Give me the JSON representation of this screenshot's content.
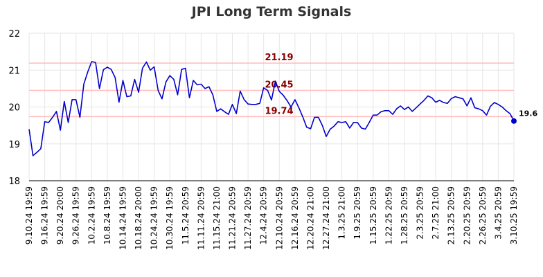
{
  "chart_data": {
    "type": "line",
    "title": "JPI Long Term Signals",
    "xlabel": "",
    "ylabel": "",
    "ylim": [
      18,
      22
    ],
    "yticks": [
      18,
      19,
      20,
      21,
      22
    ],
    "grid": true,
    "x_tick_labels": [
      "9.10.24 19:59",
      "9.16.24 19:59",
      "9.20.24 20:00",
      "9.26.24 19:59",
      "10.2.24 19:59",
      "10.8.24 19:59",
      "10.14.24 19:59",
      "10.18.24 20:00",
      "10.24.24 19:59",
      "10.30.24 19:59",
      "11.5.24 20:59",
      "11.11.24 20:59",
      "11.15.24 21:00",
      "11.21.24 20:59",
      "11.27.24 20:59",
      "12.4.24 20:59",
      "12.10.24 20:59",
      "12.16.24 20:59",
      "12.20.24 21:00",
      "12.27.24 21:00",
      "1.3.25 21:00",
      "1.9.25 20:59",
      "1.15.25 20:59",
      "1.22.25 20:59",
      "1.28.25 20:59",
      "2.3.25 20:59",
      "2.7.25 21:00",
      "2.13.25 20:59",
      "2.20.25 20:59",
      "2.26.25 20:59",
      "3.4.25 20:59",
      "3.10.25 19:59"
    ],
    "series": [
      {
        "color": "#0000cc",
        "values": [
          19.4,
          18.68,
          18.77,
          18.87,
          19.6,
          19.58,
          19.72,
          19.88,
          19.37,
          20.15,
          19.58,
          20.2,
          20.2,
          19.72,
          20.62,
          20.95,
          21.23,
          21.21,
          20.5,
          21.01,
          21.08,
          21.02,
          20.8,
          20.13,
          20.72,
          20.28,
          20.3,
          20.75,
          20.4,
          21.05,
          21.22,
          21.0,
          21.09,
          20.45,
          20.22,
          20.68,
          20.85,
          20.75,
          20.33,
          21.02,
          21.05,
          20.25,
          20.72,
          20.6,
          20.62,
          20.5,
          20.55,
          20.33,
          19.88,
          19.95,
          19.87,
          19.8,
          20.07,
          19.82,
          20.43,
          20.2,
          20.08,
          20.07,
          20.07,
          20.1,
          20.52,
          20.45,
          20.19,
          20.7,
          20.42,
          20.32,
          20.17,
          20.0,
          20.2,
          19.98,
          19.73,
          19.45,
          19.41,
          19.72,
          19.72,
          19.5,
          19.2,
          19.4,
          19.48,
          19.6,
          19.58,
          19.6,
          19.43,
          19.58,
          19.58,
          19.43,
          19.4,
          19.58,
          19.78,
          19.78,
          19.87,
          19.9,
          19.9,
          19.8,
          19.95,
          20.03,
          19.93,
          20.0,
          19.88,
          19.98,
          20.08,
          20.18,
          20.3,
          20.25,
          20.13,
          20.18,
          20.12,
          20.1,
          20.23,
          20.28,
          20.25,
          20.22,
          20.03,
          20.25,
          19.98,
          19.95,
          19.9,
          19.78,
          20.02,
          20.12,
          20.07,
          20.0,
          19.9,
          19.82,
          19.62
        ]
      }
    ],
    "levels": [
      {
        "value": 21.19,
        "label": "21.19",
        "line_color": "#ffbbbb",
        "label_color": "#8b0000"
      },
      {
        "value": 20.45,
        "label": "20.45",
        "line_color": "#ffbbbb",
        "label_color": "#8b0000"
      },
      {
        "value": 19.74,
        "label": "19.74",
        "line_color": "#ffbbbb",
        "label_color": "#8b0000"
      }
    ],
    "last_value_label": "19.6"
  }
}
